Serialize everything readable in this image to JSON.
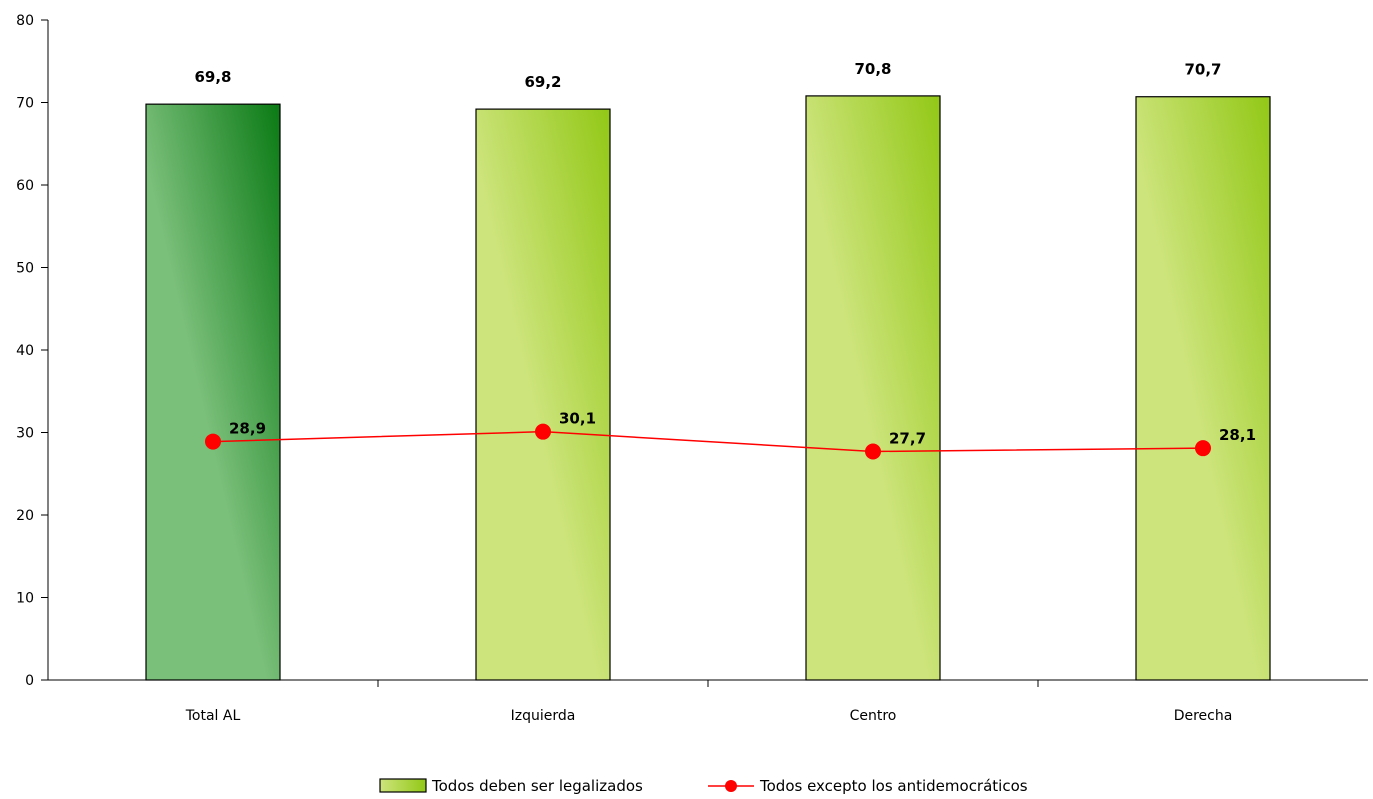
{
  "chart_data": {
    "type": "bar",
    "categories": [
      "Total AL",
      "Izquierda",
      "Centro",
      "Derecha"
    ],
    "series": [
      {
        "name": "Todos deben ser legalizados",
        "type": "bar",
        "values": [
          69.8,
          69.2,
          70.8,
          70.7
        ],
        "labels": [
          "69,8",
          "69,2",
          "70,8",
          "70,7"
        ],
        "colors": [
          "#0a7a14",
          "#92c816",
          "#92c816",
          "#92c816"
        ],
        "light_colors": [
          "#7abf7a",
          "#cde47c",
          "#cde47c",
          "#cde47c"
        ]
      },
      {
        "name": "Todos excepto los antidemocráticos",
        "type": "line",
        "values": [
          28.9,
          30.1,
          27.7,
          28.1
        ],
        "labels": [
          "28,9",
          "30,1",
          "27,7",
          "28,1"
        ],
        "color": "#ff0000"
      }
    ],
    "yticks": [
      "0",
      "10",
      "20",
      "30",
      "40",
      "50",
      "60",
      "70",
      "80"
    ],
    "ylim": [
      0,
      80
    ],
    "grid": false,
    "legend_position": "bottom-center"
  }
}
